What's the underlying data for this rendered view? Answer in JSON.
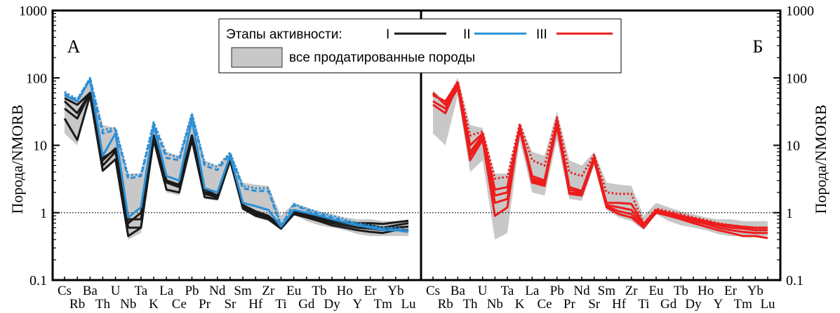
{
  "colors": {
    "stage1": "#1a1a1a",
    "stage2": "#2b8fd6",
    "stage3": "#ee1c1c",
    "envelope": "#c8c8c8"
  },
  "legend": {
    "title": "Этапы активности:",
    "stages": [
      "I",
      "II",
      "III"
    ],
    "envelope_label": "все продатированные породы"
  },
  "chart_data": [
    {
      "type": "line",
      "panel_label": "А",
      "y_scale": "log",
      "ylim": [
        0.1,
        1000
      ],
      "y_ticks": [
        "0.1",
        "1",
        "10",
        "100",
        "1000"
      ],
      "ylabel": "Порода/NMORB",
      "reference_line": 1,
      "categories": [
        "Cs",
        "Rb",
        "Ba",
        "Th",
        "U",
        "Nb",
        "Ta",
        "K",
        "La",
        "Ce",
        "Pb",
        "Pr",
        "Nd",
        "Sr",
        "Sm",
        "Hf",
        "Zr",
        "Ti",
        "Eu",
        "Gd",
        "Tb",
        "Dy",
        "Ho",
        "Y",
        "Er",
        "Tm",
        "Yb",
        "Lu"
      ],
      "envelope": {
        "upper": [
          65,
          45,
          100,
          20,
          18,
          3.8,
          3.8,
          22,
          8,
          7,
          32,
          6,
          5,
          8,
          2.8,
          2.6,
          2.5,
          0.9,
          1.4,
          1.2,
          1.05,
          0.95,
          0.85,
          0.8,
          0.8,
          0.75,
          0.75,
          0.75
        ],
        "lower": [
          15,
          10,
          55,
          4,
          6,
          0.4,
          0.5,
          12,
          2,
          1.8,
          12,
          1.6,
          1.5,
          5,
          1.1,
          0.85,
          0.75,
          0.55,
          0.95,
          0.75,
          0.65,
          0.6,
          0.55,
          0.48,
          0.45,
          0.45,
          0.45,
          0.45
        ]
      },
      "series": [
        {
          "stage": "I",
          "style": "solid",
          "values": [
            50,
            40,
            60,
            5,
            8,
            0.8,
            0.8,
            14,
            3,
            2.5,
            14,
            2,
            1.8,
            7,
            1.3,
            1,
            0.9,
            0.62,
            1.05,
            0.95,
            0.85,
            0.75,
            0.7,
            0.65,
            0.65,
            0.6,
            0.65,
            0.7
          ]
        },
        {
          "stage": "I",
          "style": "solid",
          "values": [
            35,
            25,
            60,
            6,
            9,
            0.6,
            0.6,
            13,
            2.8,
            2.4,
            14,
            1.9,
            1.7,
            6.5,
            1.2,
            0.95,
            0.85,
            0.6,
            1,
            0.9,
            0.8,
            0.7,
            0.65,
            0.6,
            0.58,
            0.55,
            0.6,
            0.62
          ]
        },
        {
          "stage": "I",
          "style": "solid",
          "values": [
            25,
            12,
            55,
            4.2,
            6.2,
            0.45,
            0.6,
            12,
            2.2,
            2,
            12,
            1.7,
            1.6,
            6,
            1.15,
            0.9,
            0.8,
            0.58,
            0.95,
            0.85,
            0.75,
            0.65,
            0.6,
            0.55,
            0.52,
            0.5,
            0.55,
            0.55
          ]
        },
        {
          "stage": "I",
          "style": "solid",
          "values": [
            45,
            30,
            60,
            6.5,
            8.5,
            0.7,
            1,
            14,
            3,
            2.6,
            14,
            2.2,
            1.8,
            7,
            1.3,
            1.05,
            0.9,
            0.62,
            1,
            0.95,
            0.85,
            0.78,
            0.72,
            0.7,
            0.7,
            0.68,
            0.72,
            0.76
          ]
        },
        {
          "stage": "II",
          "style": "solid",
          "values": [
            55,
            45,
            95,
            7,
            15,
            0.85,
            1.2,
            20,
            3.5,
            3,
            24,
            2.3,
            2,
            7,
            1.4,
            1.25,
            1.1,
            0.62,
            1.1,
            1,
            0.9,
            0.8,
            0.72,
            0.65,
            0.6,
            0.55,
            0.55,
            0.52
          ]
        },
        {
          "stage": "II",
          "style": "dotted",
          "values": [
            62,
            48,
            100,
            17,
            18,
            3.6,
            3.7,
            22,
            7.5,
            6.5,
            30,
            5.5,
            4.8,
            7.8,
            2.5,
            2.3,
            2.3,
            0.65,
            1.35,
            1.15,
            1,
            0.9,
            0.8,
            0.7,
            0.65,
            0.6,
            0.6,
            0.55
          ]
        },
        {
          "stage": "II",
          "style": "dashed",
          "values": [
            58,
            47,
            98,
            15,
            17,
            3.2,
            3.5,
            21,
            6.5,
            6,
            28,
            5,
            4.3,
            7.5,
            2.3,
            2.1,
            2.1,
            0.63,
            1.3,
            1.1,
            0.95,
            0.85,
            0.75,
            0.68,
            0.62,
            0.58,
            0.57,
            0.53
          ]
        }
      ]
    },
    {
      "type": "line",
      "panel_label": "Б",
      "y_scale": "log",
      "ylim": [
        0.1,
        1000
      ],
      "y_ticks": [
        "0.1",
        "1",
        "10",
        "100",
        "1000"
      ],
      "ylabel": "Порода/NMORB",
      "reference_line": 1,
      "categories": [
        "Cs",
        "Rb",
        "Ba",
        "Th",
        "U",
        "Nb",
        "Ta",
        "K",
        "La",
        "Ce",
        "Pb",
        "Pr",
        "Nd",
        "Sr",
        "Sm",
        "Hf",
        "Zr",
        "Ti",
        "Eu",
        "Gd",
        "Tb",
        "Dy",
        "Ho",
        "Y",
        "Er",
        "Tm",
        "Yb",
        "Lu"
      ],
      "envelope": {
        "upper": [
          65,
          45,
          100,
          20,
          18,
          3.8,
          3.8,
          22,
          8,
          7,
          32,
          6,
          5,
          8,
          2.8,
          2.6,
          2.5,
          0.9,
          1.4,
          1.2,
          1.05,
          0.95,
          0.85,
          0.8,
          0.8,
          0.75,
          0.75,
          0.75
        ],
        "lower": [
          15,
          10,
          55,
          4,
          6,
          0.4,
          0.5,
          12,
          2,
          1.8,
          12,
          1.6,
          1.5,
          5,
          1.1,
          0.85,
          0.75,
          0.55,
          0.95,
          0.75,
          0.65,
          0.6,
          0.55,
          0.48,
          0.45,
          0.45,
          0.45,
          0.45
        ]
      },
      "series": [
        {
          "stage": "III",
          "style": "solid",
          "values": [
            60,
            40,
            75,
            6,
            12,
            0.9,
            1.2,
            20,
            2.8,
            2.5,
            22,
            1.9,
            1.8,
            6,
            1.2,
            0.95,
            0.85,
            0.6,
            1,
            0.9,
            0.8,
            0.7,
            0.62,
            0.55,
            0.5,
            0.45,
            0.45,
            0.42
          ]
        },
        {
          "stage": "III",
          "style": "solid",
          "values": [
            45,
            35,
            70,
            8,
            14,
            1.8,
            2,
            18,
            3.2,
            2.8,
            20,
            2.2,
            2,
            6.5,
            1.3,
            1.2,
            1.1,
            0.65,
            1.05,
            1,
            0.9,
            0.8,
            0.72,
            0.65,
            0.6,
            0.58,
            0.55,
            0.55
          ]
        },
        {
          "stage": "III",
          "style": "solid",
          "values": [
            55,
            45,
            85,
            10,
            15,
            2.2,
            2.4,
            19,
            3.5,
            3,
            24,
            2.4,
            2.1,
            6.8,
            1.4,
            1.4,
            1.35,
            0.68,
            1.1,
            1,
            0.9,
            0.82,
            0.75,
            0.68,
            0.65,
            0.62,
            0.6,
            0.6
          ]
        },
        {
          "stage": "III",
          "style": "solid",
          "values": [
            40,
            30,
            80,
            7,
            13,
            1.4,
            1.6,
            17,
            3,
            2.6,
            19,
            2,
            1.9,
            6.2,
            1.25,
            1.05,
            0.95,
            0.62,
            1,
            0.95,
            0.85,
            0.75,
            0.68,
            0.6,
            0.55,
            0.52,
            0.5,
            0.5
          ]
        },
        {
          "stage": "III",
          "style": "dotted",
          "values": [
            58,
            42,
            90,
            14,
            16,
            3.2,
            3.4,
            21,
            6,
            5,
            26,
            4,
            3.5,
            7.2,
            2,
            1.9,
            1.9,
            0.68,
            1.15,
            1.05,
            0.95,
            0.85,
            0.78,
            0.7,
            0.65,
            0.6,
            0.58,
            0.57
          ]
        }
      ]
    }
  ]
}
